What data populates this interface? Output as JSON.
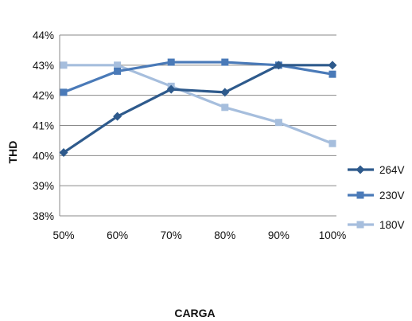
{
  "chart_data": {
    "type": "line",
    "title": "",
    "xlabel": "CARGA",
    "ylabel": "THD",
    "categories": [
      "50%",
      "60%",
      "70%",
      "80%",
      "90%",
      "100%"
    ],
    "y_ticks": [
      "38%",
      "39%",
      "40%",
      "41%",
      "42%",
      "43%",
      "44%"
    ],
    "ylim": [
      38,
      44
    ],
    "grid": "horizontal",
    "legend_position": "right",
    "series": [
      {
        "name": "264V",
        "marker": "diamond",
        "color": "#2e5a8c",
        "values": [
          40.1,
          41.3,
          42.2,
          42.1,
          43.0,
          43.0
        ]
      },
      {
        "name": "230V",
        "marker": "square",
        "color": "#4a7ab8",
        "values": [
          42.1,
          42.8,
          43.1,
          43.1,
          43.0,
          42.7
        ]
      },
      {
        "name": "180V",
        "marker": "square",
        "color": "#a6bedd",
        "values": [
          43.0,
          43.0,
          42.3,
          41.6,
          41.1,
          40.4
        ]
      }
    ]
  }
}
